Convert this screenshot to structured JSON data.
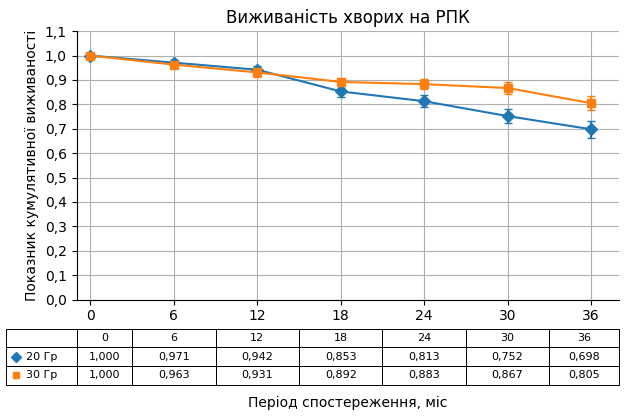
{
  "chart_data": {
    "type": "line",
    "title": "Виживаність хворих на РПК",
    "xlabel": "Період спостереження, міс",
    "ylabel": "Показник кумулятивної виживаності",
    "x": [
      0,
      6,
      12,
      18,
      24,
      30,
      36
    ],
    "series": [
      {
        "name": "20 Гр",
        "marker": "diamond",
        "line_style": "solid",
        "values": [
          1.0,
          0.971,
          0.942,
          0.853,
          0.813,
          0.752,
          0.698
        ],
        "errors": [
          0.0,
          0.012,
          0.015,
          0.022,
          0.025,
          0.03,
          0.035
        ],
        "value_labels": [
          "1,000",
          "0,971",
          "0,942",
          "0,853",
          "0,813",
          "0,752",
          "0,698"
        ]
      },
      {
        "name": "30 Гр",
        "marker": "square",
        "line_style": "solid",
        "values": [
          1.0,
          0.963,
          0.931,
          0.892,
          0.883,
          0.867,
          0.805
        ],
        "errors": [
          0.0,
          0.013,
          0.017,
          0.018,
          0.022,
          0.025,
          0.028
        ],
        "value_labels": [
          "1,000",
          "0,963",
          "0,931",
          "0,892",
          "0,883",
          "0,867",
          "0,805"
        ]
      }
    ],
    "xlim": [
      -1,
      38
    ],
    "ylim": [
      0.0,
      1.1
    ],
    "xticks": [
      0,
      6,
      12,
      18,
      24,
      30,
      36
    ],
    "yticks": [
      {
        "value": 0.0,
        "label": "0,0"
      },
      {
        "value": 0.1,
        "label": "0,1"
      },
      {
        "value": 0.2,
        "label": "0,2"
      },
      {
        "value": 0.3,
        "label": "0,3"
      },
      {
        "value": 0.4,
        "label": "0,4"
      },
      {
        "value": 0.5,
        "label": "0,5"
      },
      {
        "value": 0.6,
        "label": "0,6"
      },
      {
        "value": 0.7,
        "label": "0,7"
      },
      {
        "value": 0.8,
        "label": "0,8"
      },
      {
        "value": 0.9,
        "label": "0,9"
      },
      {
        "value": 1.0,
        "label": "1,0"
      },
      {
        "value": 1.1,
        "label": "1,1"
      }
    ],
    "grid": true
  }
}
